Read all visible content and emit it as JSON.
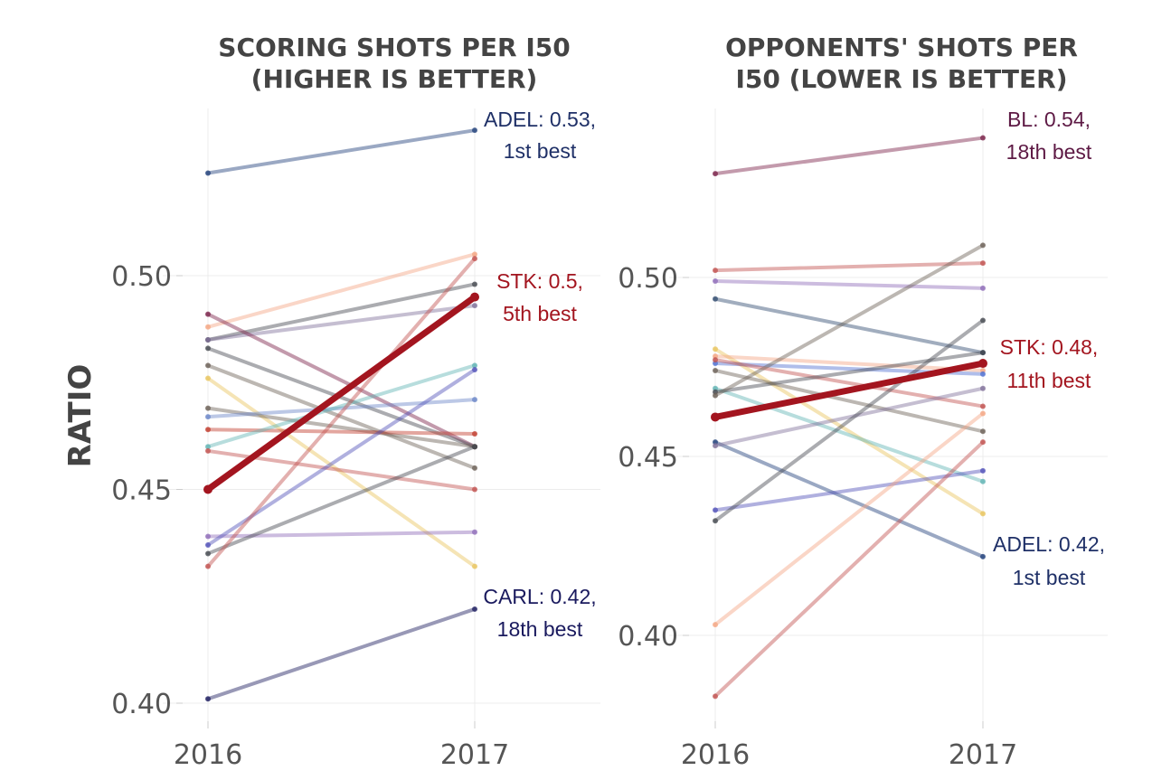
{
  "chart_data": [
    {
      "type": "line",
      "title_lines": [
        "SCORING SHOTS PER I50",
        "(HIGHER IS BETTER)"
      ],
      "xlabel": "",
      "ylabel": "RATIO",
      "x": [
        "2016",
        "2017"
      ],
      "x_tick_labels": [
        "2016",
        "2017"
      ],
      "ylim": [
        0.398,
        0.538
      ],
      "y_ticks": [
        0.4,
        0.45,
        0.5
      ],
      "y_tick_labels": [
        "0.40",
        "0.45",
        "0.50"
      ],
      "grid": true,
      "highlight": "STK",
      "series": [
        {
          "name": "ADEL",
          "values": [
            0.524,
            0.534
          ],
          "color": "#1f3f7a"
        },
        {
          "name": "STK",
          "values": [
            0.45,
            0.495
          ],
          "color": "#a3151f"
        },
        {
          "name": "CARL",
          "values": [
            0.401,
            0.422
          ],
          "color": "#1a1a5e"
        },
        {
          "values": [
            0.488,
            0.505
          ],
          "color": "#f4a582"
        },
        {
          "values": [
            0.485,
            0.498
          ],
          "color": "#44484f"
        },
        {
          "values": [
            0.485,
            0.493
          ],
          "color": "#7f6f98"
        },
        {
          "values": [
            0.491,
            0.46
          ],
          "color": "#7a2048"
        },
        {
          "values": [
            0.483,
            0.46
          ],
          "color": "#44484f"
        },
        {
          "values": [
            0.479,
            0.455
          ],
          "color": "#6b5f55"
        },
        {
          "values": [
            0.476,
            0.432
          ],
          "color": "#e8c45c"
        },
        {
          "values": [
            0.469,
            0.46
          ],
          "color": "#6b5f55"
        },
        {
          "values": [
            0.467,
            0.471
          ],
          "color": "#6a85c7"
        },
        {
          "values": [
            0.464,
            0.463
          ],
          "color": "#c0392b"
        },
        {
          "values": [
            0.46,
            0.479
          ],
          "color": "#5fb3b3"
        },
        {
          "values": [
            0.459,
            0.45
          ],
          "color": "#c0504d"
        },
        {
          "values": [
            0.439,
            0.44
          ],
          "color": "#8e6bb8"
        },
        {
          "values": [
            0.437,
            0.478
          ],
          "color": "#4f4fb8"
        },
        {
          "values": [
            0.435,
            0.46
          ],
          "color": "#44484f"
        },
        {
          "values": [
            0.432,
            0.504
          ],
          "color": "#c0504d"
        }
      ],
      "annotations": [
        {
          "lines": [
            "ADEL: 0.53,",
            "1st best"
          ],
          "color": "#1f3067"
        },
        {
          "lines": [
            "STK: 0.5,",
            "5th best"
          ],
          "color": "#a3151f"
        },
        {
          "lines": [
            "CARL: 0.42,",
            "18th best"
          ],
          "color": "#1a1a5e"
        }
      ]
    },
    {
      "type": "line",
      "title_lines": [
        "OPPONENTS' SHOTS PER",
        "I50 (LOWER IS BETTER)"
      ],
      "xlabel": "",
      "ylabel": "",
      "x": [
        "2016",
        "2017"
      ],
      "x_tick_labels": [
        "2016",
        "2017"
      ],
      "ylim": [
        0.38,
        0.548
      ],
      "y_ticks": [
        0.4,
        0.45,
        0.5
      ],
      "y_tick_labels": [
        "0.40",
        "0.45",
        "0.50"
      ],
      "grid": true,
      "highlight": "STK",
      "series": [
        {
          "name": "BL",
          "values": [
            0.529,
            0.539
          ],
          "color": "#7a2048"
        },
        {
          "name": "STK",
          "values": [
            0.461,
            0.476
          ],
          "color": "#a3151f"
        },
        {
          "name": "ADEL",
          "values": [
            0.454,
            0.422
          ],
          "color": "#1f3f7a"
        },
        {
          "values": [
            0.502,
            0.504
          ],
          "color": "#c0504d"
        },
        {
          "values": [
            0.499,
            0.497
          ],
          "color": "#8e6bb8"
        },
        {
          "values": [
            0.494,
            0.479
          ],
          "color": "#2f4a6e"
        },
        {
          "values": [
            0.48,
            0.434
          ],
          "color": "#e8c45c"
        },
        {
          "values": [
            0.478,
            0.474
          ],
          "color": "#f4a582"
        },
        {
          "values": [
            0.476,
            0.473
          ],
          "color": "#4f6fd0"
        },
        {
          "values": [
            0.477,
            0.464
          ],
          "color": "#c0504d"
        },
        {
          "values": [
            0.474,
            0.457
          ],
          "color": "#6b5f55"
        },
        {
          "values": [
            0.469,
            0.443
          ],
          "color": "#5fb3b3"
        },
        {
          "values": [
            0.468,
            0.479
          ],
          "color": "#44484f"
        },
        {
          "values": [
            0.467,
            0.509
          ],
          "color": "#6b5f55"
        },
        {
          "values": [
            0.453,
            0.469
          ],
          "color": "#7f6f98"
        },
        {
          "values": [
            0.435,
            0.446
          ],
          "color": "#4f4fb8"
        },
        {
          "values": [
            0.432,
            0.488
          ],
          "color": "#44484f"
        },
        {
          "values": [
            0.403,
            0.462
          ],
          "color": "#f4a582"
        },
        {
          "values": [
            0.383,
            0.454
          ],
          "color": "#c0504d"
        }
      ],
      "annotations": [
        {
          "lines": [
            "BL: 0.54,",
            "18th best"
          ],
          "color": "#5e1a45"
        },
        {
          "lines": [
            "STK: 0.48,",
            "11th best"
          ],
          "color": "#a3151f"
        },
        {
          "lines": [
            "ADEL: 0.42,",
            "1st best"
          ],
          "color": "#1f3067"
        }
      ]
    }
  ]
}
